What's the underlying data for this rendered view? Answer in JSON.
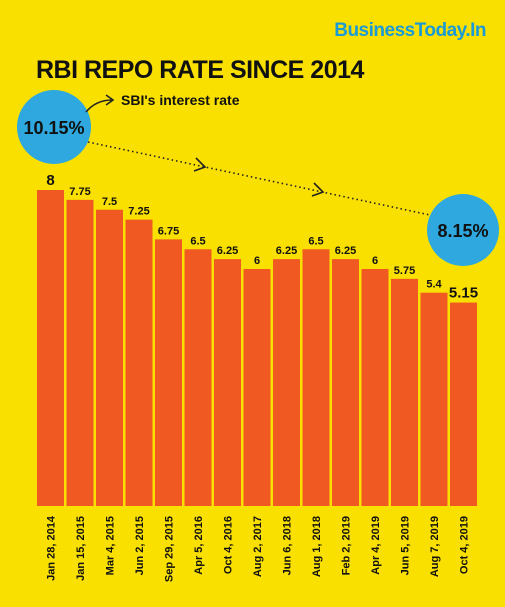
{
  "brand": "BusinessToday.In",
  "chart_data": {
    "type": "bar",
    "title": "RBI REPO RATE SINCE 2014",
    "categories": [
      "Jan 28, 2014",
      "Jan 15, 2015",
      "Mar 4, 2015",
      "Jun 2, 2015",
      "Sep 29, 2015",
      "Apr 5, 2016",
      "Oct 4, 2016",
      "Aug 2, 2017",
      "Jun 6, 2018",
      "Aug 1, 2018",
      "Feb 2, 2019",
      "Apr 4, 2019",
      "Jun 5, 2019",
      "Aug 7, 2019",
      "Oct 4, 2019"
    ],
    "values": [
      8,
      7.75,
      7.5,
      7.25,
      6.75,
      6.5,
      6.25,
      6,
      6.25,
      6.5,
      6.25,
      6,
      5.75,
      5.4,
      5.15
    ],
    "value_labels": [
      "8",
      "7.75",
      "7.5",
      "7.25",
      "6.75",
      "6.5",
      "6.25",
      "6",
      "6.25",
      "6.5",
      "6.25",
      "6",
      "5.75",
      "5.4",
      "5.15"
    ],
    "annotation": {
      "label": "SBI's interest rate",
      "start": "10.15%",
      "end": "8.15%"
    },
    "colors": {
      "background": "#f9e000",
      "bar": "#f05a22",
      "bubble": "#2ea8df",
      "brand": "#1a9ad6"
    }
  }
}
